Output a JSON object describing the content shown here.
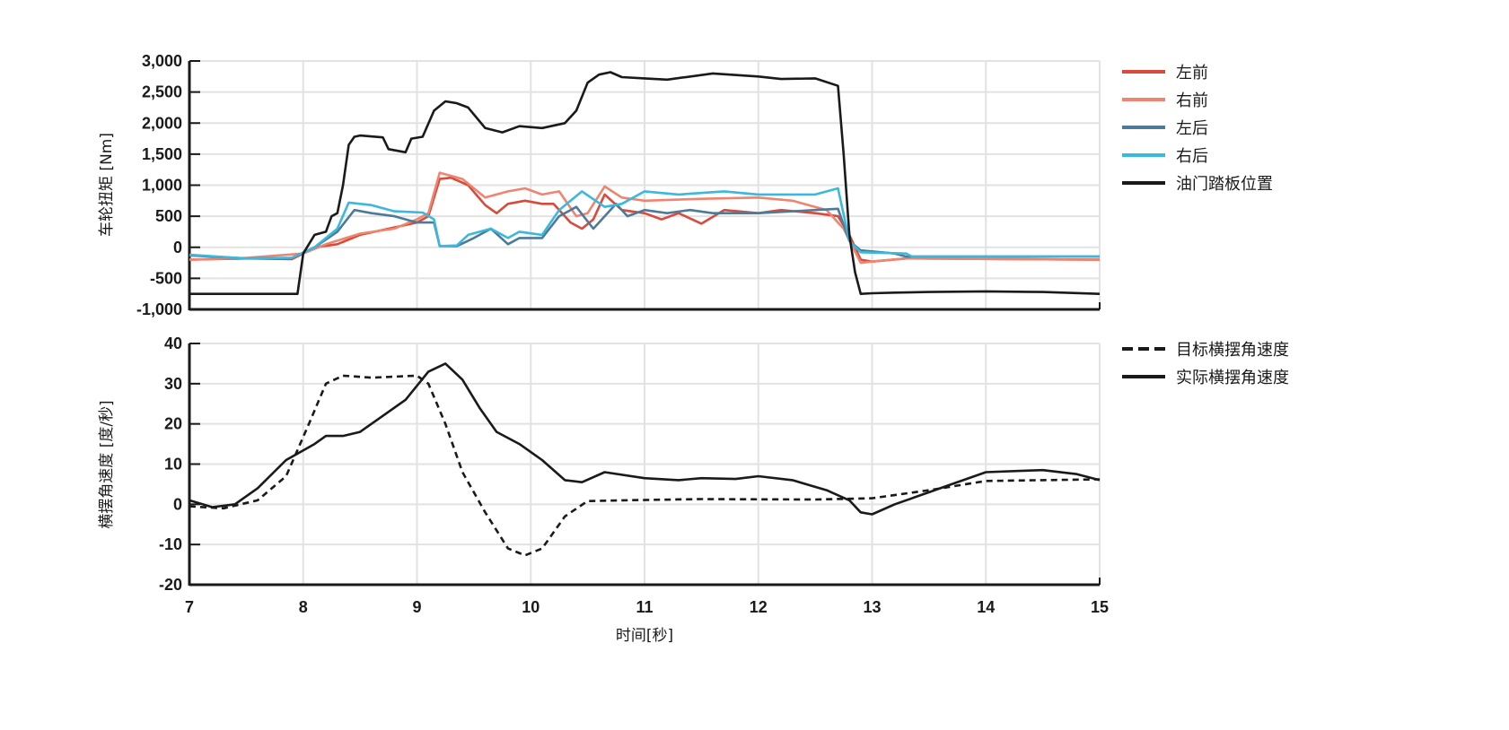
{
  "chart_data": [
    {
      "type": "line",
      "ylabel": "车轮扭矩 [Nm]",
      "xlabel": "",
      "xlim": [
        7,
        15
      ],
      "ylim": [
        -1000,
        3000
      ],
      "yticks": [
        "-1,000",
        "-500",
        "0",
        "500",
        "1,000",
        "1,500",
        "2,000",
        "2,500",
        "3,000"
      ],
      "ytick_values": [
        -1000,
        -500,
        0,
        500,
        1000,
        1500,
        2000,
        2500,
        3000
      ],
      "xtick_values": [
        7,
        8,
        9,
        10,
        11,
        12,
        13,
        14,
        15
      ],
      "grid": true,
      "legend_position": "right",
      "series": [
        {
          "name": "左前",
          "color": "#d94a3a",
          "x": [
            7,
            7.5,
            7.9,
            8.0,
            8.1,
            8.3,
            8.5,
            8.7,
            9.0,
            9.1,
            9.2,
            9.3,
            9.45,
            9.6,
            9.7,
            9.8,
            9.95,
            10.1,
            10.2,
            10.35,
            10.45,
            10.55,
            10.65,
            10.8,
            11.0,
            11.15,
            11.3,
            11.5,
            11.7,
            12.0,
            12.2,
            12.5,
            12.7,
            12.8,
            12.9,
            13.0,
            13.3,
            15
          ],
          "y": [
            -200,
            -180,
            -190,
            -100,
            0,
            50,
            200,
            280,
            400,
            500,
            1100,
            1120,
            1000,
            680,
            550,
            700,
            750,
            700,
            700,
            400,
            300,
            450,
            850,
            600,
            550,
            450,
            550,
            380,
            600,
            550,
            600,
            550,
            500,
            200,
            -200,
            -230,
            -180,
            -200
          ]
        },
        {
          "name": "右前",
          "color": "#ef8470",
          "x": [
            7,
            7.5,
            8.0,
            8.2,
            8.5,
            8.8,
            9.0,
            9.1,
            9.2,
            9.4,
            9.6,
            9.8,
            9.95,
            10.1,
            10.25,
            10.4,
            10.5,
            10.65,
            10.8,
            11.0,
            11.5,
            12.0,
            12.3,
            12.6,
            12.75,
            12.9,
            13.0,
            13.3,
            15
          ],
          "y": [
            -200,
            -170,
            -100,
            50,
            220,
            300,
            450,
            550,
            1200,
            1100,
            800,
            900,
            950,
            850,
            900,
            500,
            550,
            980,
            800,
            750,
            780,
            800,
            750,
            600,
            300,
            -250,
            -230,
            -180,
            -200
          ]
        },
        {
          "name": "左后",
          "color": "#4e7a99",
          "x": [
            7,
            7.5,
            7.9,
            8.1,
            8.3,
            8.45,
            8.6,
            8.8,
            9.0,
            9.15,
            9.2,
            9.35,
            9.5,
            9.65,
            9.8,
            9.9,
            10.1,
            10.25,
            10.4,
            10.55,
            10.75,
            10.85,
            11.0,
            11.2,
            11.4,
            11.6,
            12.0,
            12.5,
            12.7,
            12.8,
            12.9,
            13.2,
            13.3,
            15
          ],
          "y": [
            -130,
            -180,
            -170,
            0,
            250,
            600,
            550,
            500,
            400,
            400,
            20,
            20,
            150,
            300,
            50,
            150,
            150,
            500,
            650,
            300,
            700,
            500,
            600,
            550,
            600,
            550,
            550,
            600,
            620,
            100,
            -50,
            -100,
            -150,
            -150
          ]
        },
        {
          "name": "右后",
          "color": "#3bb8dd",
          "x": [
            7,
            7.5,
            7.9,
            8.1,
            8.3,
            8.4,
            8.6,
            8.8,
            9.05,
            9.15,
            9.2,
            9.35,
            9.45,
            9.65,
            9.8,
            9.9,
            10.1,
            10.25,
            10.45,
            10.65,
            10.8,
            11.0,
            11.3,
            11.7,
            12.0,
            12.5,
            12.7,
            12.8,
            12.9,
            13.3,
            13.35,
            15
          ],
          "y": [
            -120,
            -180,
            -170,
            0,
            300,
            720,
            680,
            580,
            560,
            450,
            20,
            30,
            200,
            300,
            150,
            250,
            200,
            600,
            900,
            650,
            700,
            900,
            850,
            900,
            850,
            850,
            950,
            100,
            -80,
            -100,
            -150,
            -150
          ]
        },
        {
          "name": "油门踏板位置",
          "color": "#1a1a1a",
          "x": [
            7,
            7.95,
            8.0,
            8.1,
            8.2,
            8.25,
            8.3,
            8.35,
            8.4,
            8.45,
            8.5,
            8.7,
            8.75,
            8.9,
            8.95,
            9.05,
            9.15,
            9.25,
            9.35,
            9.45,
            9.6,
            9.75,
            9.9,
            10.1,
            10.3,
            10.4,
            10.5,
            10.6,
            10.7,
            10.8,
            11.0,
            11.2,
            11.6,
            12.0,
            12.2,
            12.5,
            12.7,
            12.75,
            12.8,
            12.85,
            12.9,
            13.0,
            13.2,
            13.5,
            14.0,
            14.5,
            15
          ],
          "y": [
            -750,
            -750,
            -100,
            200,
            250,
            500,
            550,
            1000,
            1650,
            1780,
            1800,
            1770,
            1580,
            1530,
            1750,
            1780,
            2200,
            2350,
            2320,
            2250,
            1920,
            1850,
            1950,
            1920,
            2000,
            2200,
            2650,
            2780,
            2820,
            2740,
            2720,
            2700,
            2800,
            2750,
            2710,
            2720,
            2600,
            1500,
            200,
            -400,
            -750,
            -740,
            -730,
            -720,
            -710,
            -720,
            -750
          ]
        }
      ]
    },
    {
      "type": "line",
      "ylabel": "横摆角速度 [度/秒]",
      "xlabel": "时间[秒]",
      "xlim": [
        7,
        15
      ],
      "ylim": [
        -20,
        40
      ],
      "yticks": [
        "-20",
        "-10",
        "0",
        "10",
        "20",
        "30",
        "40"
      ],
      "ytick_values": [
        -20,
        -10,
        0,
        10,
        20,
        30,
        40
      ],
      "xticks": [
        "7",
        "8",
        "9",
        "10",
        "11",
        "12",
        "13",
        "14",
        "15"
      ],
      "xtick_values": [
        7,
        8,
        9,
        10,
        11,
        12,
        13,
        14,
        15
      ],
      "grid": true,
      "legend_position": "right",
      "series": [
        {
          "name": "目标横摆角速度",
          "color": "#1a1a1a",
          "style": "dashed",
          "x": [
            7,
            7.3,
            7.6,
            7.85,
            8.05,
            8.2,
            8.35,
            8.6,
            9.0,
            9.1,
            9.25,
            9.4,
            9.6,
            9.8,
            9.95,
            10.1,
            10.3,
            10.5,
            10.8,
            11.5,
            12.5,
            13.0,
            13.5,
            14.0,
            14.5,
            15
          ],
          "y": [
            -0.5,
            -1,
            1,
            7,
            20,
            30,
            32,
            31.5,
            32,
            30,
            20,
            8,
            -2,
            -11,
            -12.7,
            -11,
            -3,
            0.8,
            1,
            1.3,
            1.2,
            1.5,
            3.5,
            5.8,
            6,
            6.2
          ]
        },
        {
          "name": "实际横摆角速度",
          "color": "#1a1a1a",
          "style": "solid",
          "x": [
            7,
            7.2,
            7.4,
            7.6,
            7.85,
            8.1,
            8.2,
            8.35,
            8.5,
            8.7,
            8.9,
            9.1,
            9.25,
            9.4,
            9.55,
            9.7,
            9.9,
            10.1,
            10.3,
            10.45,
            10.65,
            11.0,
            11.3,
            11.5,
            11.8,
            12.0,
            12.3,
            12.6,
            12.8,
            12.9,
            13.0,
            13.2,
            13.5,
            13.7,
            14.0,
            14.3,
            14.5,
            14.8,
            15
          ],
          "y": [
            1,
            -0.7,
            0,
            4,
            11,
            15,
            17,
            17,
            18,
            22,
            26,
            33,
            35,
            31,
            24,
            18,
            15,
            11,
            6,
            5.5,
            8,
            6.5,
            6,
            6.5,
            6.3,
            7,
            6,
            3.5,
            1,
            -2,
            -2.5,
            0,
            3,
            5,
            8,
            8.3,
            8.5,
            7.5,
            6
          ]
        }
      ]
    }
  ]
}
